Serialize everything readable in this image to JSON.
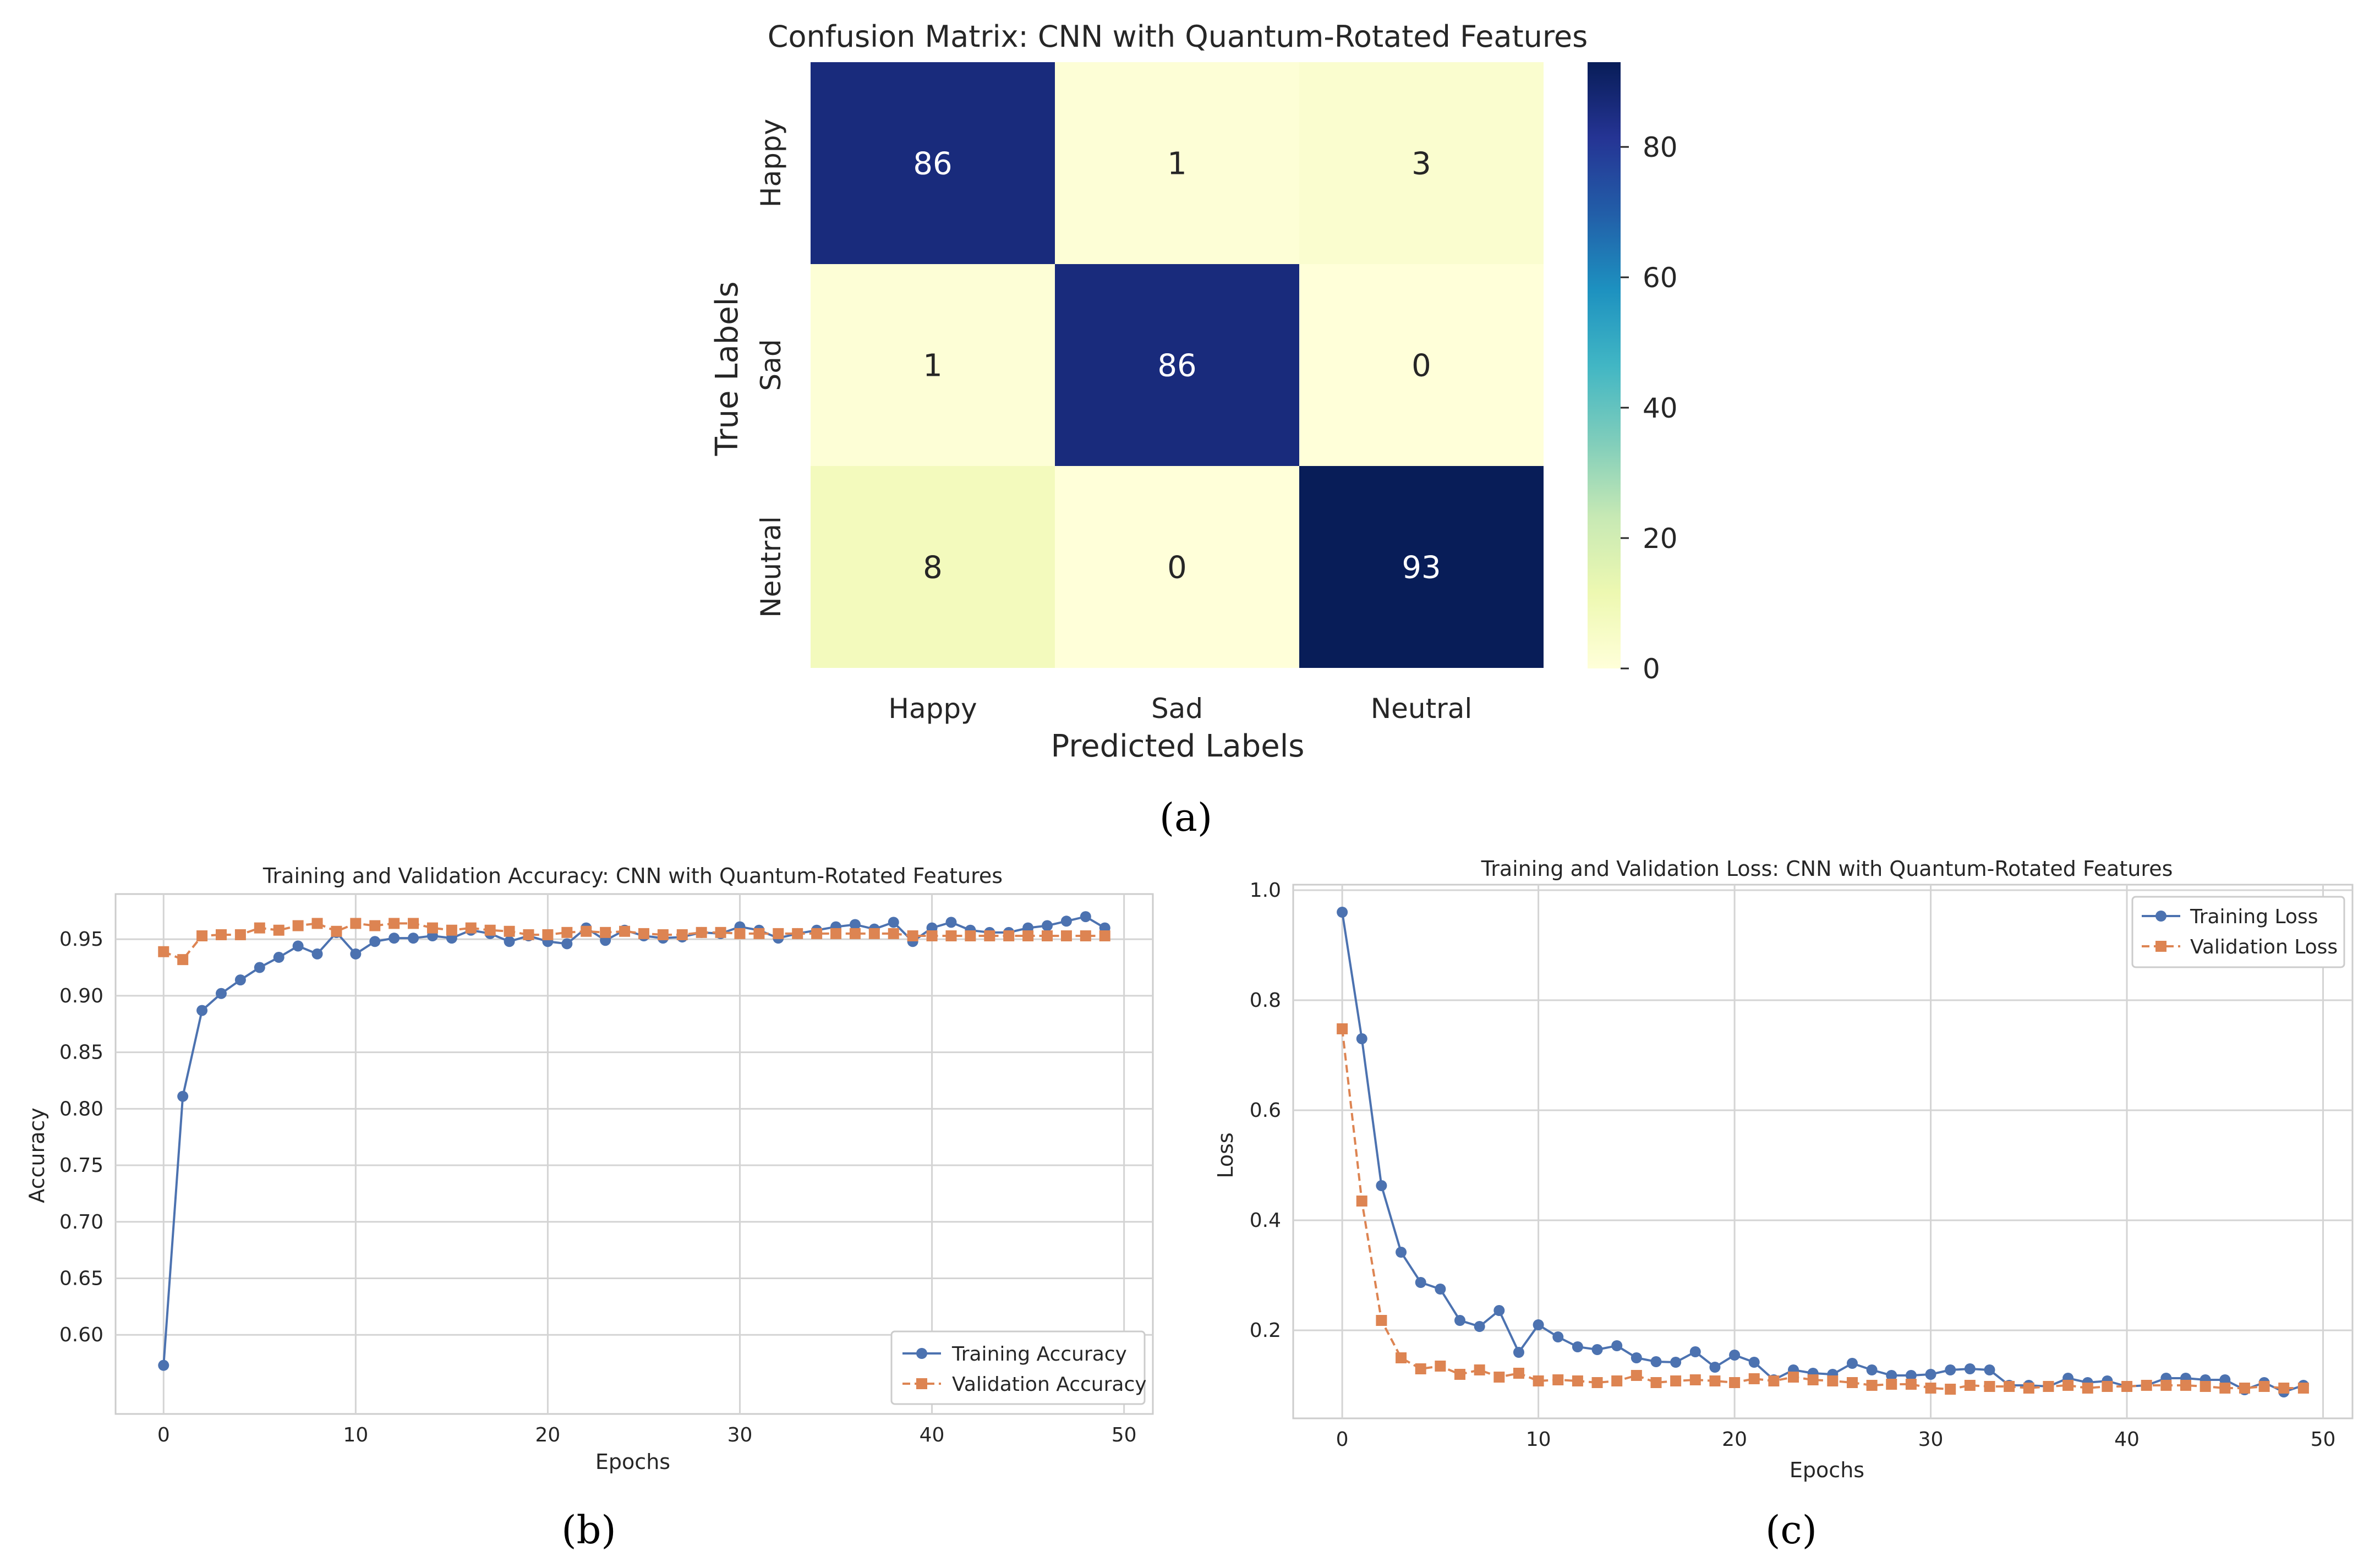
{
  "captions": {
    "a": "(a)",
    "b": "(b)",
    "c": "(c)"
  },
  "colors": {
    "training": "#4c72b0",
    "validation": "#dd8452",
    "grid": "#d4d4d4",
    "text": "#262626"
  },
  "chart_data": [
    {
      "type": "heatmap",
      "title": "Confusion Matrix: CNN with Quantum-Rotated Features",
      "xlabel": "Predicted Labels",
      "ylabel": "True Labels",
      "x_categories": [
        "Happy",
        "Sad",
        "Neutral"
      ],
      "y_categories": [
        "Happy",
        "Sad",
        "Neutral"
      ],
      "values": [
        [
          86,
          1,
          3
        ],
        [
          1,
          86,
          0
        ],
        [
          8,
          0,
          93
        ]
      ],
      "colormap": "YlGnBu",
      "colorbar": {
        "min": 0,
        "max": 93,
        "ticks": [
          0,
          20,
          40,
          60,
          80
        ]
      }
    },
    {
      "type": "line",
      "title": "Training and Validation Accuracy: CNN with Quantum-Rotated Features",
      "xlabel": "Epochs",
      "ylabel": "Accuracy",
      "xlim": [
        -2.5,
        51.5
      ],
      "ylim": [
        0.53,
        0.99
      ],
      "xticks": [
        0,
        10,
        20,
        30,
        40,
        50
      ],
      "yticks": [
        "0.60",
        "0.65",
        "0.70",
        "0.75",
        "0.80",
        "0.85",
        "0.90",
        "0.95"
      ],
      "legend_position": "lower-right",
      "grid": true,
      "x": [
        0,
        1,
        2,
        3,
        4,
        5,
        6,
        7,
        8,
        9,
        10,
        11,
        12,
        13,
        14,
        15,
        16,
        17,
        18,
        19,
        20,
        21,
        22,
        23,
        24,
        25,
        26,
        27,
        28,
        29,
        30,
        31,
        32,
        33,
        34,
        35,
        36,
        37,
        38,
        39,
        40,
        41,
        42,
        43,
        44,
        45,
        46,
        47,
        48,
        49
      ],
      "series": [
        {
          "name": "Training Accuracy",
          "marker": "circle",
          "style": "solid",
          "values": [
            0.573,
            0.811,
            0.887,
            0.902,
            0.914,
            0.925,
            0.934,
            0.944,
            0.937,
            0.956,
            0.937,
            0.948,
            0.951,
            0.951,
            0.953,
            0.951,
            0.958,
            0.955,
            0.948,
            0.953,
            0.948,
            0.946,
            0.96,
            0.949,
            0.958,
            0.953,
            0.951,
            0.952,
            0.956,
            0.955,
            0.961,
            0.958,
            0.951,
            0.955,
            0.958,
            0.961,
            0.963,
            0.959,
            0.965,
            0.948,
            0.96,
            0.965,
            0.958,
            0.956,
            0.956,
            0.96,
            0.962,
            0.966,
            0.97,
            0.96
          ]
        },
        {
          "name": "Validation Accuracy",
          "marker": "square",
          "style": "dashed",
          "values": [
            0.939,
            0.932,
            0.953,
            0.954,
            0.954,
            0.96,
            0.958,
            0.962,
            0.964,
            0.957,
            0.964,
            0.962,
            0.964,
            0.964,
            0.96,
            0.958,
            0.96,
            0.958,
            0.957,
            0.954,
            0.954,
            0.956,
            0.957,
            0.956,
            0.957,
            0.955,
            0.954,
            0.954,
            0.956,
            0.956,
            0.955,
            0.955,
            0.955,
            0.955,
            0.955,
            0.955,
            0.955,
            0.955,
            0.955,
            0.953,
            0.953,
            0.953,
            0.953,
            0.953,
            0.953,
            0.953,
            0.953,
            0.953,
            0.953,
            0.953
          ]
        }
      ]
    },
    {
      "type": "line",
      "title": "Training and Validation Loss: CNN with Quantum-Rotated Features",
      "xlabel": "Epochs",
      "ylabel": "Loss",
      "xlim": [
        -2.5,
        51.5
      ],
      "ylim": [
        0.04,
        1.01
      ],
      "xticks": [
        0,
        10,
        20,
        30,
        40,
        50
      ],
      "yticks": [
        "0.2",
        "0.4",
        "0.6",
        "0.8",
        "1.0"
      ],
      "legend_position": "upper-right",
      "grid": true,
      "x": [
        0,
        1,
        2,
        3,
        4,
        5,
        6,
        7,
        8,
        9,
        10,
        11,
        12,
        13,
        14,
        15,
        16,
        17,
        18,
        19,
        20,
        21,
        22,
        23,
        24,
        25,
        26,
        27,
        28,
        29,
        30,
        31,
        32,
        33,
        34,
        35,
        36,
        37,
        38,
        39,
        40,
        41,
        42,
        43,
        44,
        45,
        46,
        47,
        48,
        49
      ],
      "series": [
        {
          "name": "Training Loss",
          "marker": "circle",
          "style": "solid",
          "values": [
            0.96,
            0.73,
            0.463,
            0.342,
            0.287,
            0.275,
            0.218,
            0.207,
            0.236,
            0.16,
            0.21,
            0.188,
            0.17,
            0.165,
            0.172,
            0.15,
            0.143,
            0.142,
            0.161,
            0.133,
            0.155,
            0.142,
            0.11,
            0.128,
            0.122,
            0.12,
            0.14,
            0.128,
            0.118,
            0.118,
            0.12,
            0.128,
            0.13,
            0.128,
            0.1,
            0.1,
            0.098,
            0.113,
            0.105,
            0.108,
            0.098,
            0.1,
            0.113,
            0.113,
            0.11,
            0.11,
            0.092,
            0.105,
            0.088,
            0.1
          ]
        },
        {
          "name": "Validation Loss",
          "marker": "square",
          "style": "dashed",
          "values": [
            0.748,
            0.435,
            0.218,
            0.15,
            0.13,
            0.135,
            0.12,
            0.128,
            0.115,
            0.122,
            0.108,
            0.11,
            0.108,
            0.105,
            0.108,
            0.118,
            0.105,
            0.108,
            0.11,
            0.108,
            0.105,
            0.112,
            0.108,
            0.115,
            0.11,
            0.108,
            0.105,
            0.1,
            0.102,
            0.102,
            0.095,
            0.093,
            0.1,
            0.098,
            0.098,
            0.095,
            0.098,
            0.1,
            0.095,
            0.098,
            0.098,
            0.1,
            0.1,
            0.1,
            0.098,
            0.095,
            0.095,
            0.098,
            0.095,
            0.095
          ]
        }
      ]
    }
  ]
}
